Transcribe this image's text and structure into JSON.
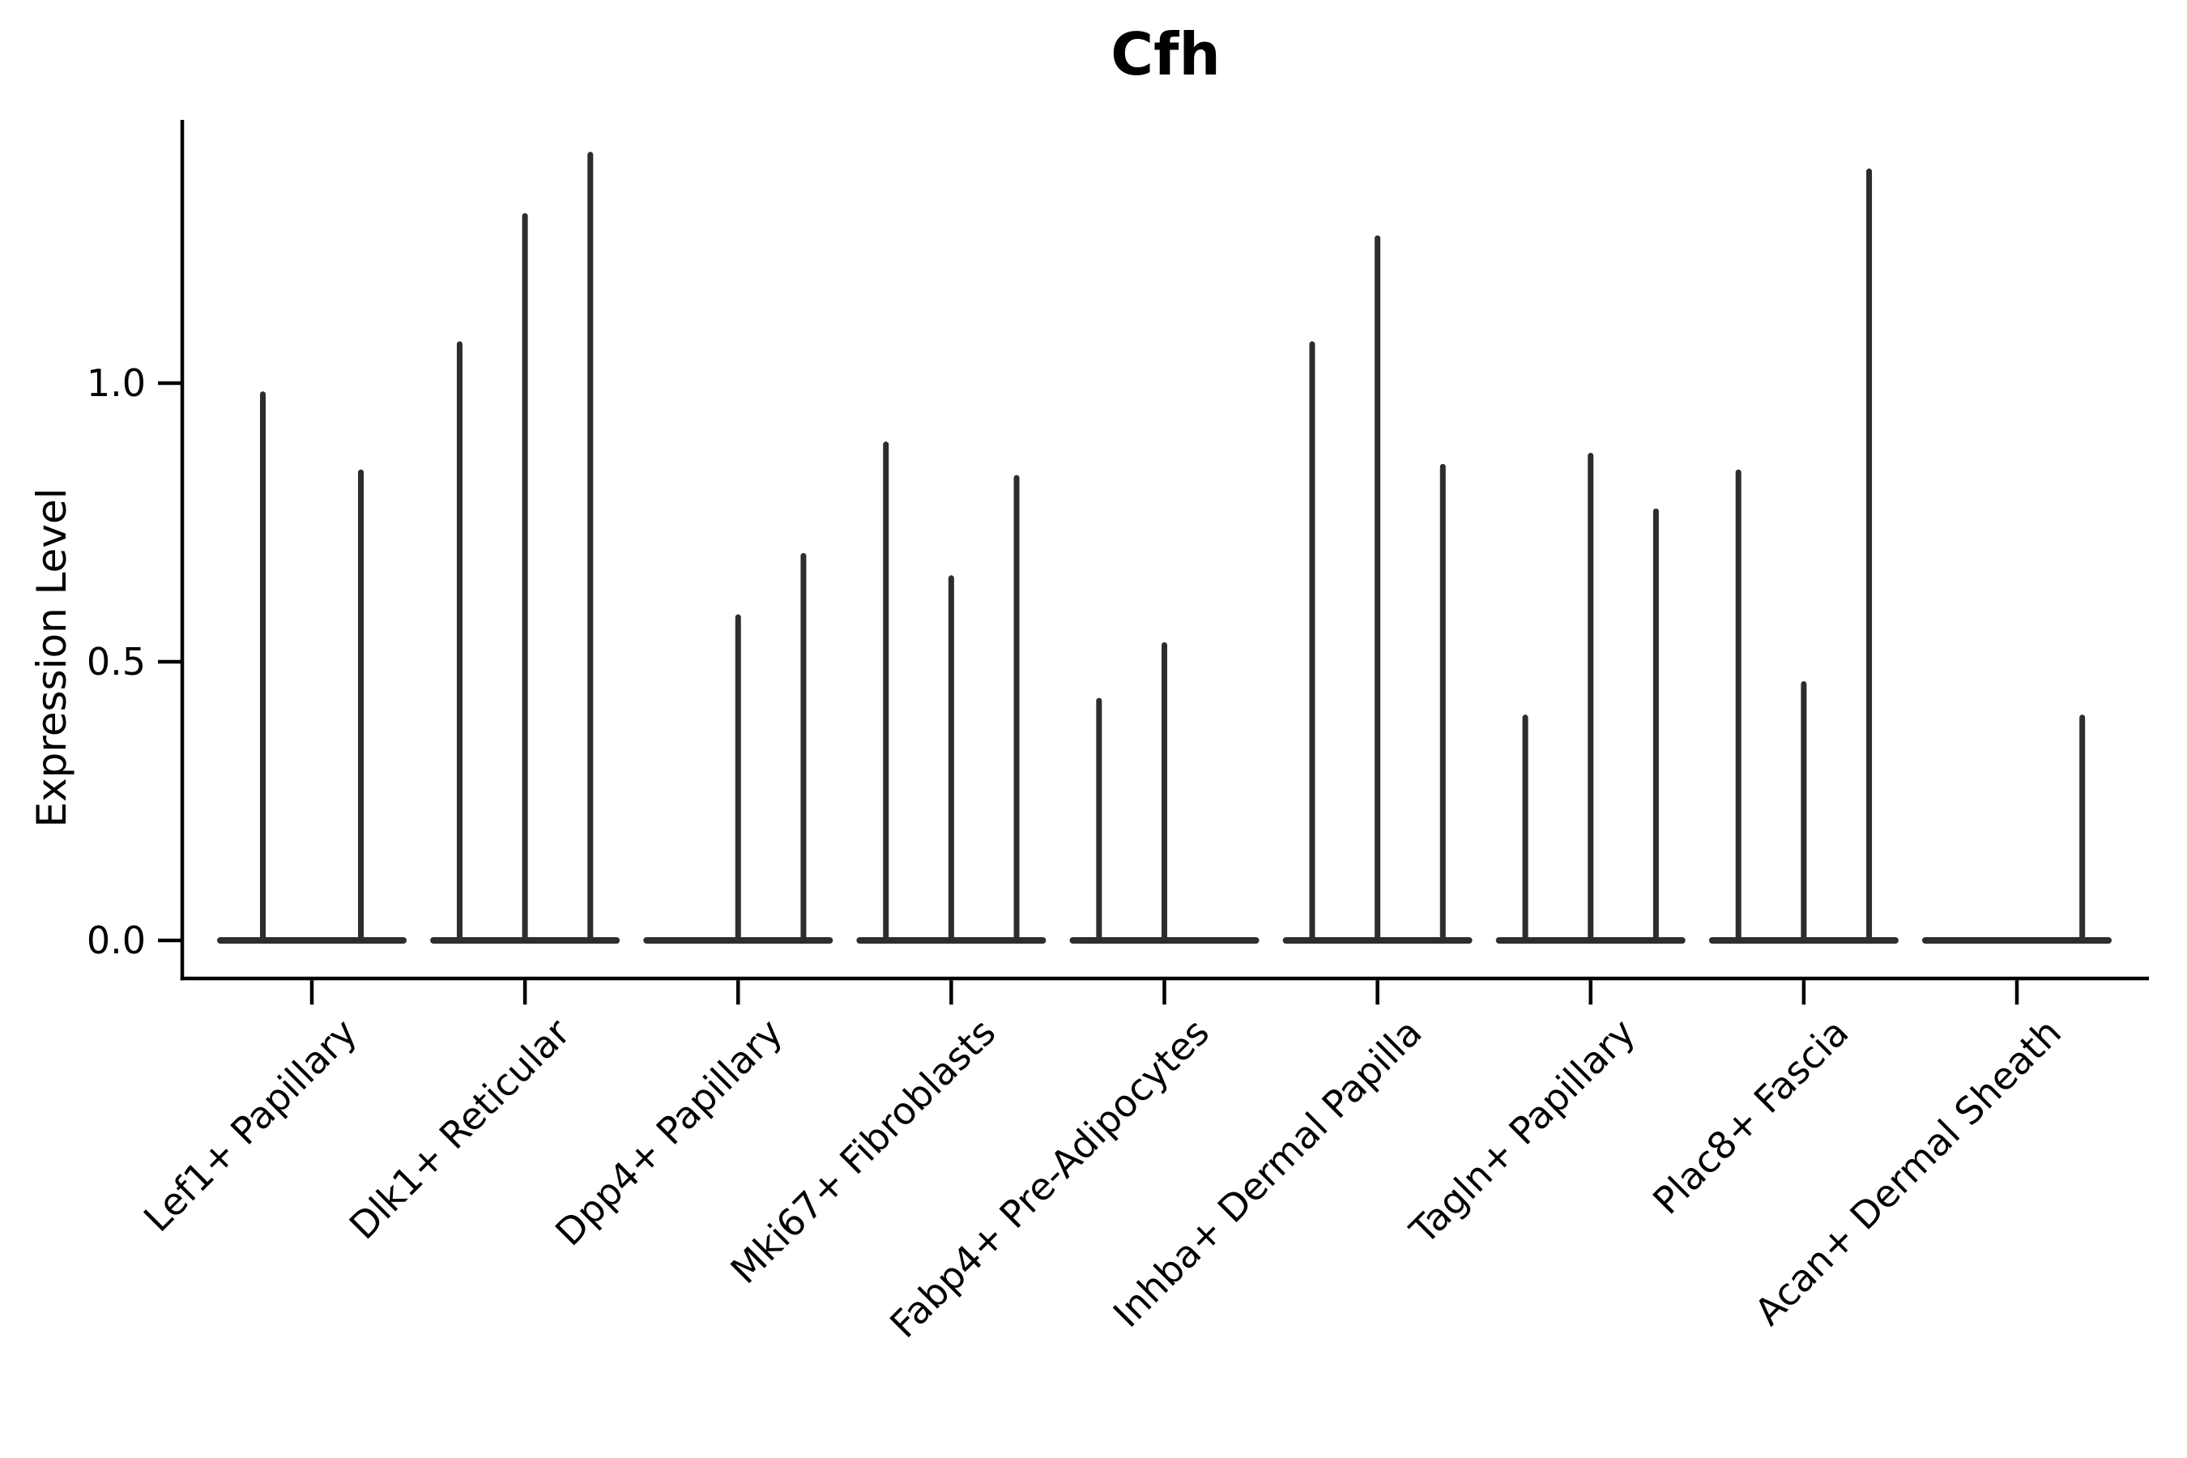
{
  "figure": {
    "title": "Cfh",
    "background_color": "#ffffff",
    "ink_color": "#2d2d2d",
    "axis_color": "#000000"
  },
  "chart_data": {
    "type": "violin",
    "title": "Cfh",
    "xlabel": "",
    "ylabel": "Expression Level",
    "ylim": [
      0,
      1.47
    ],
    "grid": false,
    "legend": "none",
    "yticks": [
      {
        "label": "0.0",
        "value": 0.0
      },
      {
        "label": "0.5",
        "value": 0.5
      },
      {
        "label": "1.0",
        "value": 1.0
      }
    ],
    "categories": [
      "Lef1+ Papillary",
      "Dlk1+ Reticular",
      "Dpp4+ Papillary",
      "Mki67+ Fibroblasts",
      "Fabp4+ Pre-Adipocytes",
      "Inhba+ Dermal Papilla",
      "Tagln+ Papillary",
      "Plac8+ Fascia",
      "Acan+ Dermal Sheath"
    ],
    "violins_per_category": [
      [
        0.98,
        0.84
      ],
      [
        1.07,
        1.3,
        1.41
      ],
      [
        0.0,
        0.58,
        0.69
      ],
      [
        0.89,
        0.65,
        0.83
      ],
      [
        0.43,
        0.53,
        0.0
      ],
      [
        1.07,
        1.26,
        0.85
      ],
      [
        0.4,
        0.87,
        0.77
      ],
      [
        0.84,
        0.46,
        1.38
      ],
      [
        0.0,
        0.0,
        0.4
      ]
    ],
    "zero_value_means_flat_violin_at_baseline": true
  }
}
